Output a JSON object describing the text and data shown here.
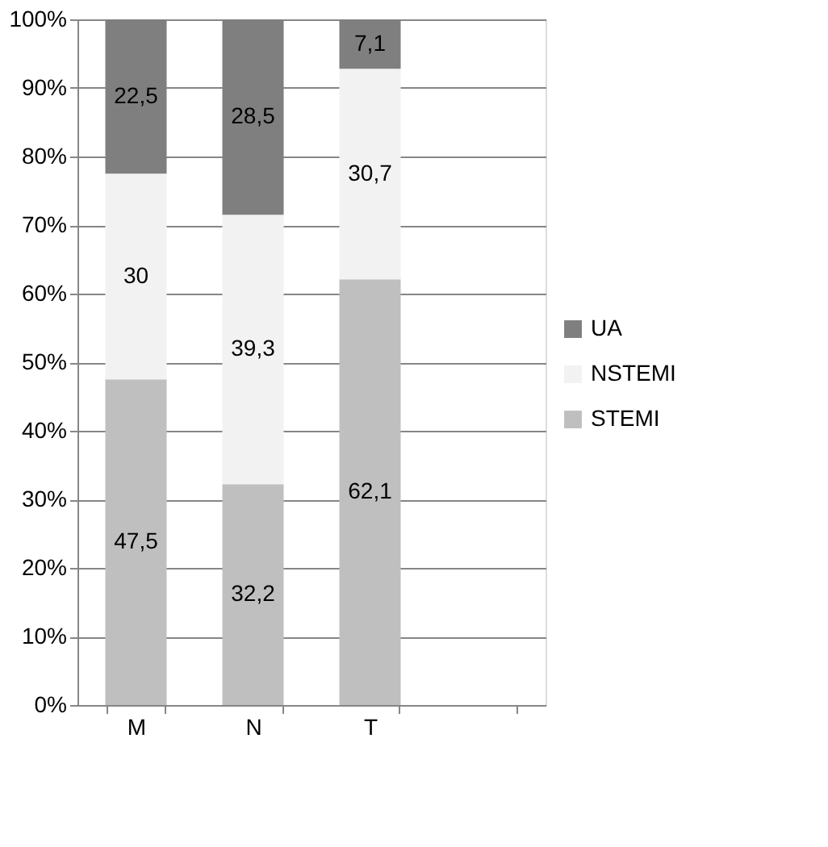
{
  "chart_data": {
    "type": "bar",
    "stacked": true,
    "categories": [
      "M",
      "N",
      "T",
      null
    ],
    "series": [
      {
        "name": "STEMI",
        "color": "#bfbfbf",
        "values": [
          47.5,
          32.2,
          62.1,
          null
        ],
        "value_labels": [
          "47,5",
          "32,2",
          "62,1",
          null
        ]
      },
      {
        "name": "NSTEMI",
        "color": "#f2f2f2",
        "values": [
          30,
          39.3,
          30.7,
          null
        ],
        "value_labels": [
          "30",
          "39,3",
          "30,7",
          null
        ]
      },
      {
        "name": "UA",
        "color": "#7f7f7f",
        "values": [
          22.5,
          28.5,
          7.1,
          null
        ],
        "value_labels": [
          "22,5",
          "28,5",
          "7,1",
          null
        ]
      }
    ],
    "ylim": [
      0,
      100
    ],
    "yticks": [
      {
        "value": 0,
        "label": "0%"
      },
      {
        "value": 10,
        "label": "10%"
      },
      {
        "value": 20,
        "label": "20%"
      },
      {
        "value": 30,
        "label": "30%"
      },
      {
        "value": 40,
        "label": "40%"
      },
      {
        "value": 50,
        "label": "50%"
      },
      {
        "value": 60,
        "label": "60%"
      },
      {
        "value": 70,
        "label": "70%"
      },
      {
        "value": 80,
        "label": "80%"
      },
      {
        "value": 90,
        "label": "90%"
      },
      {
        "value": 100,
        "label": "100%"
      }
    ],
    "grid": "y",
    "legend": "right"
  }
}
